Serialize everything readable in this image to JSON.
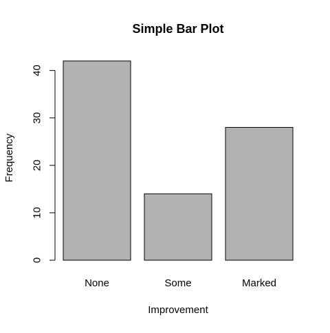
{
  "chart_data": {
    "type": "bar",
    "title": "Simple Bar Plot",
    "xlabel": "Improvement",
    "ylabel": "Frequency",
    "categories": [
      "None",
      "Some",
      "Marked"
    ],
    "values": [
      42,
      14,
      28
    ],
    "ylim": [
      0,
      44
    ],
    "yticks": [
      0,
      10,
      20,
      30,
      40
    ],
    "grid": false,
    "bar_color": "#b2b2b2",
    "border_color": "#000000"
  }
}
